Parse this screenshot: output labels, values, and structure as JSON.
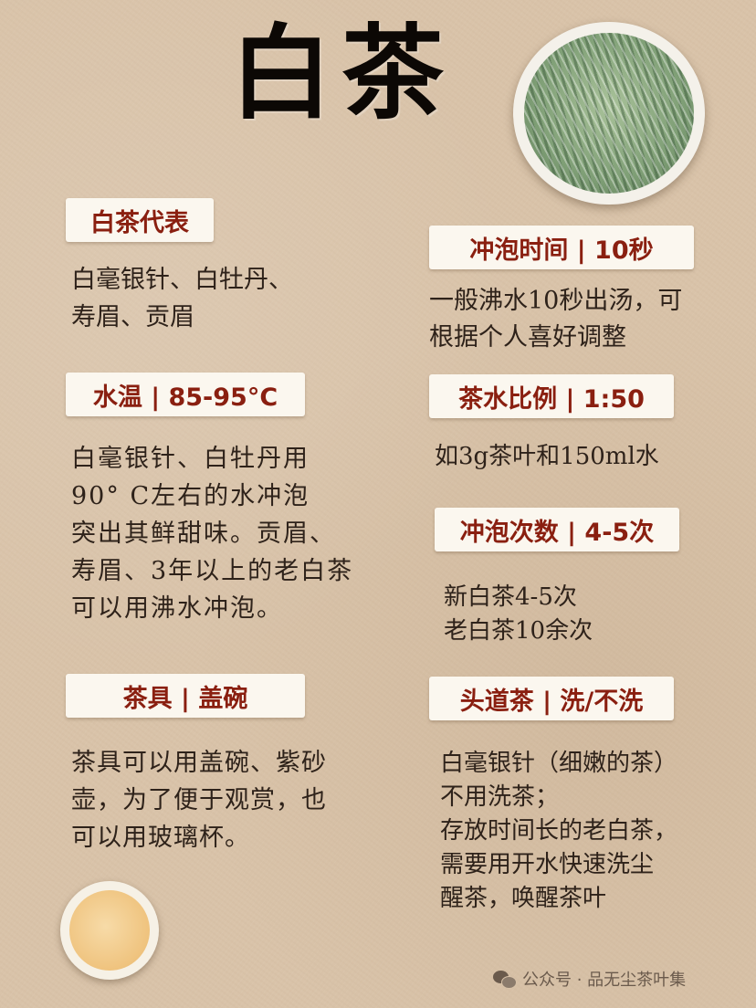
{
  "title": "白茶",
  "sections": {
    "representatives": {
      "label": "白茶代表",
      "text": "白毫银针、白牡丹、\n寿眉、贡眉"
    },
    "water_temp": {
      "label": "水温 | 85-95°C",
      "text": "白毫银针、白牡丹用\n90° C左右的水冲泡\n突出其鲜甜味。贡眉、\n寿眉、3年以上的老白茶\n可以用沸水冲泡。"
    },
    "teaware": {
      "label": "茶具 | 盖碗",
      "text": "茶具可以用盖碗、紫砂\n壶，为了便于观赏，也\n可以用玻璃杯。"
    },
    "brew_time": {
      "label": "冲泡时间 | 10秒",
      "text": "一般沸水10秒出汤，可\n根据个人喜好调整"
    },
    "ratio": {
      "label": "茶水比例 | 1:50",
      "text": "如3g茶叶和150ml水"
    },
    "infusions": {
      "label": "冲泡次数 | 4-5次",
      "text": "新白茶4-5次\n老白茶10余次"
    },
    "first_brew": {
      "label": "头道茶 | 洗/不洗",
      "text": "白毫银针（细嫩的茶）\n不用洗茶；\n存放时间长的老白茶，\n需要用开水快速洗尘\n醒茶，唤醒茶叶"
    }
  },
  "footer": {
    "text": "公众号 · 品无尘茶叶集"
  },
  "icons": {
    "footer_icon": "wechat-icon"
  },
  "colors": {
    "label_text": "#8a1f10",
    "label_bg": "#fbf7ef",
    "background": "#d9c3a9"
  }
}
